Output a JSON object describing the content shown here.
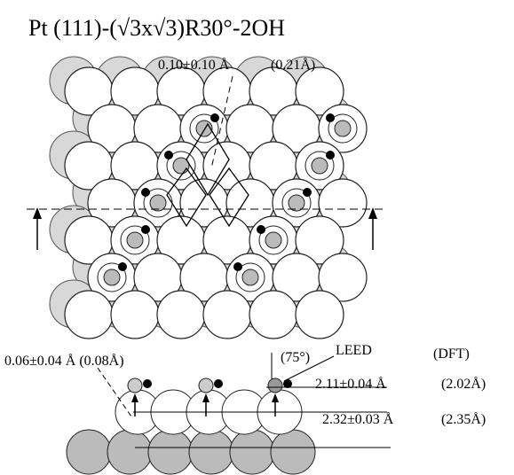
{
  "title": "Pt (111)-(√3x√3)R30°-2OH",
  "top_view": {
    "shift_label": "0.10±0.10 Å",
    "shift_dft": "(0.21Å)"
  },
  "side_view": {
    "o_shift": "0.06±0.04 Å (0.08Å)",
    "angle": "(75°)",
    "leed_header": "LEED",
    "dft_header": "(DFT)",
    "spacing_1": "2.11±0.04 Å",
    "spacing_1_dft": "(2.02Å)",
    "spacing_2": "2.32±0.03 Å",
    "spacing_2_dft": "(2.35Å)"
  }
}
